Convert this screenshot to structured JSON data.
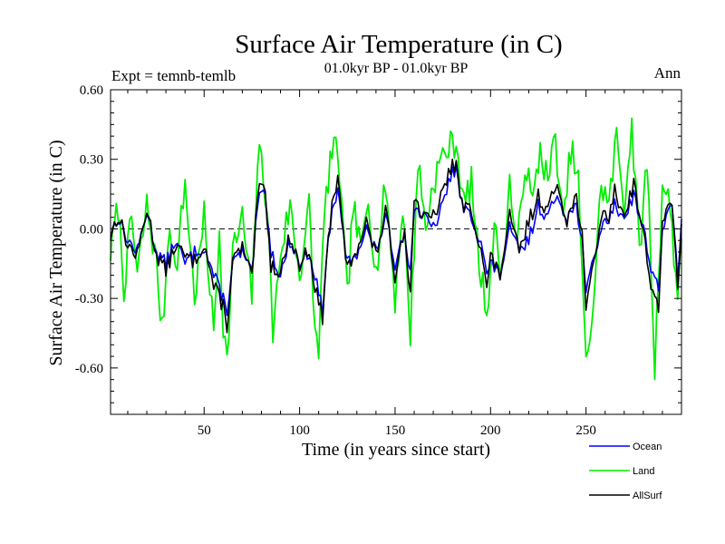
{
  "chart_data": {
    "type": "line",
    "title": "Surface Air Temperature (in C)",
    "subtitle": "01.0kyr BP - 01.0kyr BP",
    "left_label": "Expt = temnb-temlb",
    "right_label": "Ann",
    "xlabel": "Time (in years since start)",
    "ylabel": "Surface Air Temperature (in C)",
    "xlim": [
      1,
      300
    ],
    "ylim": [
      -0.8,
      0.6
    ],
    "x_ticks": [
      50,
      100,
      150,
      200,
      250
    ],
    "x_tick_labels": [
      "50",
      "100",
      "150",
      "200",
      "250"
    ],
    "y_ticks": [
      0.6,
      0.3,
      0.0,
      -0.3,
      -0.6
    ],
    "y_tick_labels": [
      "0.60",
      "0.30",
      "0.00",
      "-0.30",
      "-0.60"
    ],
    "zero_line": "dashed",
    "legend_position": "bottom-right",
    "colors": {
      "Ocean": "#0000ff",
      "Land": "#00ee00",
      "AllSurf": "#000000"
    },
    "series": [
      {
        "name": "Ocean",
        "keyframes": [
          [
            1,
            -0.02
          ],
          [
            5,
            0.05
          ],
          [
            10,
            -0.05
          ],
          [
            15,
            -0.1
          ],
          [
            20,
            0.08
          ],
          [
            25,
            -0.1
          ],
          [
            30,
            -0.15
          ],
          [
            35,
            -0.05
          ],
          [
            40,
            -0.15
          ],
          [
            45,
            -0.1
          ],
          [
            50,
            -0.08
          ],
          [
            55,
            -0.2
          ],
          [
            60,
            -0.3
          ],
          [
            62,
            -0.35
          ],
          [
            65,
            -0.15
          ],
          [
            70,
            -0.1
          ],
          [
            75,
            -0.2
          ],
          [
            78,
            0.1
          ],
          [
            80,
            0.15
          ],
          [
            82,
            0.15
          ],
          [
            85,
            -0.1
          ],
          [
            90,
            -0.2
          ],
          [
            95,
            -0.05
          ],
          [
            100,
            -0.15
          ],
          [
            105,
            -0.1
          ],
          [
            108,
            -0.2
          ],
          [
            110,
            -0.28
          ],
          [
            112,
            -0.35
          ],
          [
            115,
            -0.05
          ],
          [
            118,
            0.12
          ],
          [
            120,
            0.15
          ],
          [
            125,
            -0.15
          ],
          [
            130,
            -0.1
          ],
          [
            135,
            0.0
          ],
          [
            140,
            -0.1
          ],
          [
            145,
            0.05
          ],
          [
            150,
            -0.15
          ],
          [
            155,
            0.0
          ],
          [
            158,
            -0.2
          ],
          [
            160,
            0.1
          ],
          [
            165,
            0.05
          ],
          [
            170,
            0.0
          ],
          [
            175,
            0.1
          ],
          [
            178,
            0.2
          ],
          [
            180,
            0.25
          ],
          [
            182,
            0.25
          ],
          [
            185,
            0.1
          ],
          [
            190,
            0.05
          ],
          [
            195,
            -0.05
          ],
          [
            198,
            -0.2
          ],
          [
            200,
            -0.15
          ],
          [
            205,
            -0.2
          ],
          [
            210,
            0.0
          ],
          [
            215,
            -0.1
          ],
          [
            220,
            -0.05
          ],
          [
            225,
            0.1
          ],
          [
            230,
            0.05
          ],
          [
            235,
            0.15
          ],
          [
            240,
            0.05
          ],
          [
            245,
            0.1
          ],
          [
            248,
            -0.05
          ],
          [
            250,
            -0.3
          ],
          [
            253,
            -0.15
          ],
          [
            258,
            0.0
          ],
          [
            262,
            0.05
          ],
          [
            265,
            0.1
          ],
          [
            270,
            0.05
          ],
          [
            275,
            0.15
          ],
          [
            280,
            0.0
          ],
          [
            285,
            -0.2
          ],
          [
            288,
            -0.25
          ],
          [
            290,
            0.0
          ],
          [
            295,
            0.1
          ],
          [
            298,
            -0.2
          ],
          [
            300,
            0.05
          ]
        ]
      },
      {
        "name": "Land",
        "keyframes": [
          [
            1,
            -0.1
          ],
          [
            5,
            0.1
          ],
          [
            8,
            -0.25
          ],
          [
            12,
            0.05
          ],
          [
            15,
            -0.2
          ],
          [
            20,
            0.1
          ],
          [
            25,
            -0.15
          ],
          [
            28,
            -0.45
          ],
          [
            32,
            0.05
          ],
          [
            35,
            -0.2
          ],
          [
            40,
            0.2
          ],
          [
            45,
            -0.3
          ],
          [
            50,
            0.05
          ],
          [
            55,
            -0.45
          ],
          [
            58,
            0.0
          ],
          [
            60,
            -0.4
          ],
          [
            62,
            -0.58
          ],
          [
            65,
            -0.1
          ],
          [
            70,
            0.05
          ],
          [
            75,
            -0.3
          ],
          [
            78,
            0.3
          ],
          [
            80,
            0.3
          ],
          [
            83,
            0.1
          ],
          [
            86,
            -0.45
          ],
          [
            90,
            -0.1
          ],
          [
            95,
            0.1
          ],
          [
            100,
            -0.2
          ],
          [
            105,
            0.1
          ],
          [
            108,
            -0.45
          ],
          [
            110,
            -0.5
          ],
          [
            113,
            0.05
          ],
          [
            116,
            0.3
          ],
          [
            120,
            0.35
          ],
          [
            125,
            -0.3
          ],
          [
            128,
            0.1
          ],
          [
            132,
            -0.1
          ],
          [
            136,
            0.15
          ],
          [
            140,
            -0.2
          ],
          [
            145,
            0.2
          ],
          [
            150,
            -0.3
          ],
          [
            154,
            0.1
          ],
          [
            158,
            -0.45
          ],
          [
            162,
            0.3
          ],
          [
            166,
            0.0
          ],
          [
            170,
            0.2
          ],
          [
            174,
            0.3
          ],
          [
            178,
            0.35
          ],
          [
            182,
            0.38
          ],
          [
            186,
            0.1
          ],
          [
            190,
            0.2
          ],
          [
            194,
            -0.15
          ],
          [
            198,
            -0.35
          ],
          [
            202,
            0.0
          ],
          [
            206,
            -0.2
          ],
          [
            210,
            0.2
          ],
          [
            214,
            -0.1
          ],
          [
            218,
            0.3
          ],
          [
            222,
            0.1
          ],
          [
            226,
            0.35
          ],
          [
            230,
            0.2
          ],
          [
            234,
            0.4
          ],
          [
            238,
            0.0
          ],
          [
            242,
            0.35
          ],
          [
            246,
            0.2
          ],
          [
            250,
            -0.6
          ],
          [
            254,
            -0.3
          ],
          [
            258,
            0.2
          ],
          [
            262,
            0.1
          ],
          [
            266,
            0.4
          ],
          [
            270,
            0.1
          ],
          [
            274,
            0.45
          ],
          [
            278,
            -0.1
          ],
          [
            282,
            0.3
          ],
          [
            286,
            -0.6
          ],
          [
            290,
            0.2
          ],
          [
            294,
            0.1
          ],
          [
            298,
            -0.3
          ],
          [
            300,
            0.0
          ]
        ]
      },
      {
        "name": "AllSurf",
        "keyframes": [
          [
            1,
            -0.03
          ],
          [
            5,
            0.06
          ],
          [
            10,
            -0.07
          ],
          [
            15,
            -0.12
          ],
          [
            20,
            0.09
          ],
          [
            25,
            -0.11
          ],
          [
            30,
            -0.18
          ],
          [
            35,
            -0.07
          ],
          [
            40,
            -0.12
          ],
          [
            45,
            -0.14
          ],
          [
            50,
            -0.06
          ],
          [
            55,
            -0.25
          ],
          [
            60,
            -0.33
          ],
          [
            62,
            -0.42
          ],
          [
            65,
            -0.14
          ],
          [
            70,
            -0.08
          ],
          [
            75,
            -0.22
          ],
          [
            78,
            0.14
          ],
          [
            80,
            0.18
          ],
          [
            82,
            0.16
          ],
          [
            85,
            -0.16
          ],
          [
            90,
            -0.18
          ],
          [
            95,
            -0.03
          ],
          [
            100,
            -0.16
          ],
          [
            105,
            -0.08
          ],
          [
            108,
            -0.25
          ],
          [
            110,
            -0.32
          ],
          [
            112,
            -0.38
          ],
          [
            115,
            -0.04
          ],
          [
            118,
            0.16
          ],
          [
            120,
            0.2
          ],
          [
            125,
            -0.18
          ],
          [
            130,
            -0.08
          ],
          [
            135,
            0.03
          ],
          [
            140,
            -0.12
          ],
          [
            145,
            0.08
          ],
          [
            150,
            -0.2
          ],
          [
            155,
            0.02
          ],
          [
            158,
            -0.3
          ],
          [
            160,
            0.15
          ],
          [
            165,
            0.04
          ],
          [
            170,
            0.05
          ],
          [
            175,
            0.15
          ],
          [
            178,
            0.24
          ],
          [
            180,
            0.28
          ],
          [
            182,
            0.27
          ],
          [
            185,
            0.1
          ],
          [
            190,
            0.08
          ],
          [
            195,
            -0.08
          ],
          [
            198,
            -0.26
          ],
          [
            200,
            -0.12
          ],
          [
            205,
            -0.2
          ],
          [
            210,
            0.05
          ],
          [
            215,
            -0.1
          ],
          [
            220,
            0.03
          ],
          [
            225,
            0.14
          ],
          [
            230,
            0.08
          ],
          [
            235,
            0.2
          ],
          [
            240,
            0.04
          ],
          [
            245,
            0.14
          ],
          [
            248,
            -0.02
          ],
          [
            250,
            -0.38
          ],
          [
            253,
            -0.18
          ],
          [
            258,
            0.05
          ],
          [
            262,
            0.06
          ],
          [
            265,
            0.16
          ],
          [
            270,
            0.06
          ],
          [
            275,
            0.2
          ],
          [
            280,
            -0.02
          ],
          [
            285,
            -0.28
          ],
          [
            288,
            -0.34
          ],
          [
            290,
            0.04
          ],
          [
            295,
            0.1
          ],
          [
            298,
            -0.24
          ],
          [
            300,
            0.03
          ]
        ]
      }
    ]
  }
}
